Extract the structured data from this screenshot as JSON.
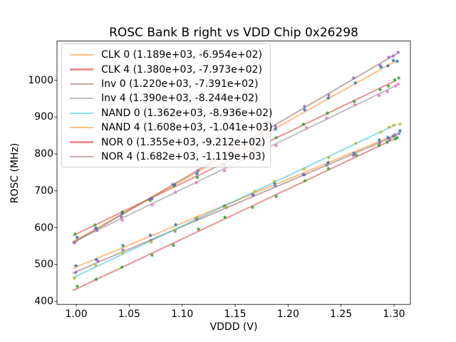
{
  "chart_data": {
    "type": "scatter",
    "title": "ROSC Bank B right vs VDD Chip 0x26298",
    "xlabel": "VDDD (V)",
    "ylabel": "ROSC (MHz)",
    "xlim": [
      0.9818,
      1.3155
    ],
    "ylim": [
      391.9,
      1106.1
    ],
    "xticks": [
      1.0,
      1.05,
      1.1,
      1.15,
      1.2,
      1.25,
      1.3
    ],
    "xtick_labels": [
      "1.00",
      "1.05",
      "1.10",
      "1.15",
      "1.20",
      "1.25",
      "1.30"
    ],
    "yticks": [
      400,
      500,
      600,
      700,
      800,
      900,
      1000
    ],
    "ytick_labels": [
      "400",
      "500",
      "600",
      "700",
      "800",
      "900",
      "1000"
    ],
    "grid": false,
    "legend_position": "upper-left",
    "marker": "star",
    "line_alpha": 0.5,
    "point_opacity": 0.9,
    "fit_x_range": [
      0.997,
      1.302
    ],
    "x_samples": [
      0.998,
      1.021,
      1.0455,
      1.0695,
      1.0925,
      1.116,
      1.1405,
      1.165,
      1.19,
      1.2145,
      1.2385,
      1.2625,
      1.2865,
      1.2955,
      1.3,
      1.304
    ],
    "series": [
      {
        "name": "CLK 0",
        "label": "CLK 0 (1.189e+03, -6.954e+02)",
        "slope": 1189,
        "intercept": -695.4,
        "line_color": "#ff7f0e",
        "point_color": "#1f77b4"
      },
      {
        "name": "CLK 4",
        "label": "CLK 4 (1.380e+03, -7.973e+02)",
        "slope": 1380,
        "intercept": -797.3,
        "line_color": "#d62728",
        "point_color": "#2ca02c"
      },
      {
        "name": "Inv 0",
        "label": "Inv 0 (1.220e+03, -7.391e+02)",
        "slope": 1220,
        "intercept": -739.1,
        "line_color": "#8c564b",
        "point_color": "#9467bd"
      },
      {
        "name": "Inv 4",
        "label": "Inv 4 (1.390e+03, -8.244e+02)",
        "slope": 1390,
        "intercept": -824.4,
        "line_color": "#7f7f7f",
        "point_color": "#e377c2"
      },
      {
        "name": "NAND 0",
        "label": "NAND 0 (1.362e+03, -8.936e+02)",
        "slope": 1362,
        "intercept": -893.6,
        "line_color": "#17becf",
        "point_color": "#bcbd22"
      },
      {
        "name": "NAND 4",
        "label": "NAND 4 (1.608e+03, -1.041e+03)",
        "slope": 1608,
        "intercept": -1041,
        "line_color": "#ff7f0e",
        "point_color": "#1f77b4"
      },
      {
        "name": "NOR 0",
        "label": "NOR 0 (1.355e+03, -9.212e+02)",
        "slope": 1355,
        "intercept": -921.2,
        "line_color": "#d62728",
        "point_color": "#2ca02c"
      },
      {
        "name": "NOR 4",
        "label": "NOR 4 (1.682e+03, -1.119e+03)",
        "slope": 1682,
        "intercept": -1119,
        "line_color": "#8c564b",
        "point_color": "#9467bd"
      }
    ]
  }
}
